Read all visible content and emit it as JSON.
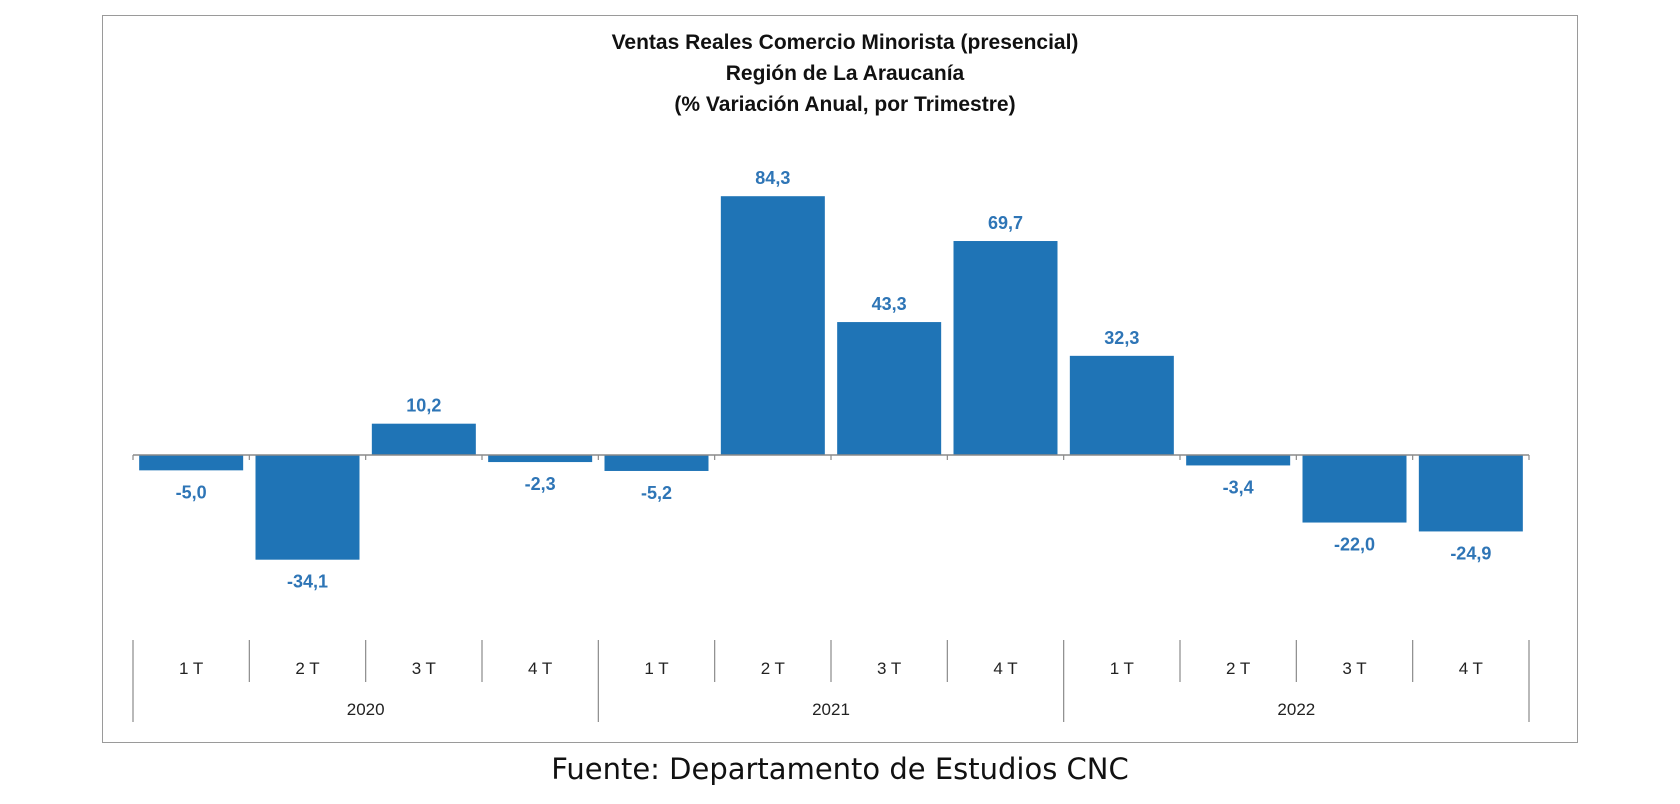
{
  "chart_data": {
    "type": "bar",
    "title": [
      "Ventas Reales Comercio Minorista  (presencial)",
      "Región de La Araucanía",
      "(% Variación Anual, por Trimestre)"
    ],
    "categories": [
      "1 T",
      "2 T",
      "3 T",
      "4 T",
      "1 T",
      "2 T",
      "3 T",
      "4 T",
      "1 T",
      "2 T",
      "3 T",
      "4 T"
    ],
    "years": [
      "2020",
      "2021",
      "2022"
    ],
    "values": [
      -5.0,
      -34.1,
      10.2,
      -2.3,
      -5.2,
      84.3,
      43.3,
      69.7,
      32.3,
      -3.4,
      -22.0,
      -24.9
    ],
    "value_labels": [
      "-5,0",
      "-34,1",
      "10,2",
      "-2,3",
      "-5,2",
      "84,3",
      "43,3",
      "69,7",
      "32,3",
      "-3,4",
      "-22,0",
      "-24,9"
    ],
    "bar_color": "#1f74b6",
    "label_color": "#2e75b6",
    "grid": false,
    "legend": "none"
  },
  "source": "Fuente: Departamento de Estudios CNC"
}
